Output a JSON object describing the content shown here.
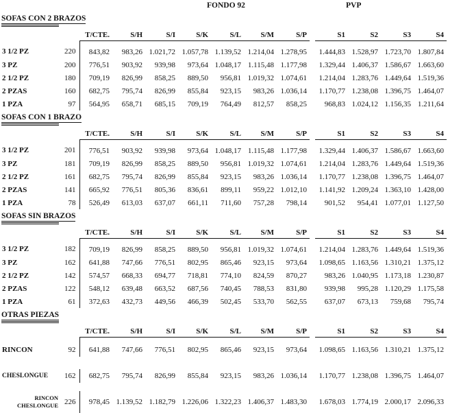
{
  "group_headers": {
    "fondo": "FONDO 92",
    "pvp": "PVP"
  },
  "columns": [
    "T/CTE.",
    "S/H",
    "S/I",
    "S/K",
    "S/L",
    "S/M",
    "S/P",
    "S1",
    "S2",
    "S3",
    "S4"
  ],
  "sections": [
    {
      "title": "SOFAS CON 2 BRAZOS",
      "spaced": false,
      "rows": [
        {
          "label_lines": [
            "3 1/2 PZ"
          ],
          "size": "220",
          "values": [
            "843,82",
            "983,26",
            "1.021,72",
            "1.057,78",
            "1.139,52",
            "1.214,04",
            "1.278,95",
            "1.444,83",
            "1.528,97",
            "1.723,70",
            "1.807,84"
          ]
        },
        {
          "label_lines": [
            "3 PZ"
          ],
          "size": "200",
          "values": [
            "776,51",
            "903,92",
            "939,98",
            "973,64",
            "1.048,17",
            "1.115,48",
            "1.177,98",
            "1.329,44",
            "1.406,37",
            "1.586,67",
            "1.663,60"
          ]
        },
        {
          "label_lines": [
            "2 1/2 PZ"
          ],
          "size": "180",
          "values": [
            "709,19",
            "826,99",
            "858,25",
            "889,50",
            "956,81",
            "1.019,32",
            "1.074,61",
            "1.214,04",
            "1.283,76",
            "1.449,64",
            "1.519,36"
          ]
        },
        {
          "label_lines": [
            "2 PZAS"
          ],
          "size": "160",
          "values": [
            "682,75",
            "795,74",
            "826,99",
            "855,84",
            "923,15",
            "983,26",
            "1.036,14",
            "1.170,77",
            "1.238,08",
            "1.396,75",
            "1.464,07"
          ]
        },
        {
          "label_lines": [
            "1 PZA"
          ],
          "size": "97",
          "values": [
            "564,95",
            "658,71",
            "685,15",
            "709,19",
            "764,49",
            "812,57",
            "858,25",
            "968,83",
            "1.024,12",
            "1.156,35",
            "1.211,64"
          ]
        }
      ]
    },
    {
      "title": "SOFAS CON 1 BRAZO",
      "spaced": false,
      "rows": [
        {
          "label_lines": [
            "3 1/2 PZ"
          ],
          "size": "201",
          "values": [
            "776,51",
            "903,92",
            "939,98",
            "973,64",
            "1.048,17",
            "1.115,48",
            "1.177,98",
            "1.329,44",
            "1.406,37",
            "1.586,67",
            "1.663,60"
          ]
        },
        {
          "label_lines": [
            "3 PZ"
          ],
          "size": "181",
          "values": [
            "709,19",
            "826,99",
            "858,25",
            "889,50",
            "956,81",
            "1.019,32",
            "1.074,61",
            "1.214,04",
            "1.283,76",
            "1.449,64",
            "1.519,36"
          ]
        },
        {
          "label_lines": [
            "2 1/2 PZ"
          ],
          "size": "161",
          "values": [
            "682,75",
            "795,74",
            "826,99",
            "855,84",
            "923,15",
            "983,26",
            "1.036,14",
            "1.170,77",
            "1.238,08",
            "1.396,75",
            "1.464,07"
          ]
        },
        {
          "label_lines": [
            "2 PZAS"
          ],
          "size": "141",
          "values": [
            "665,92",
            "776,51",
            "805,36",
            "836,61",
            "899,11",
            "959,22",
            "1.012,10",
            "1.141,92",
            "1.209,24",
            "1.363,10",
            "1.428,00"
          ]
        },
        {
          "label_lines": [
            "1 PZA"
          ],
          "size": "78",
          "values": [
            "526,49",
            "613,03",
            "637,07",
            "661,11",
            "711,60",
            "757,28",
            "798,14",
            "901,52",
            "954,41",
            "1.077,01",
            "1.127,50"
          ]
        }
      ]
    },
    {
      "title": "SOFAS SIN BRAZOS",
      "spaced": false,
      "rows": [
        {
          "label_lines": [
            "3 1/2 PZ"
          ],
          "size": "182",
          "values": [
            "709,19",
            "826,99",
            "858,25",
            "889,50",
            "956,81",
            "1.019,32",
            "1.074,61",
            "1.214,04",
            "1.283,76",
            "1.449,64",
            "1.519,36"
          ]
        },
        {
          "label_lines": [
            "3 PZ"
          ],
          "size": "162",
          "values": [
            "641,88",
            "747,66",
            "776,51",
            "802,95",
            "865,46",
            "923,15",
            "973,64",
            "1.098,65",
            "1.163,56",
            "1.310,21",
            "1.375,12"
          ]
        },
        {
          "label_lines": [
            "2 1/2 PZ"
          ],
          "size": "142",
          "values": [
            "574,57",
            "668,33",
            "694,77",
            "718,81",
            "774,10",
            "824,59",
            "870,27",
            "983,26",
            "1.040,95",
            "1.173,18",
            "1.230,87"
          ]
        },
        {
          "label_lines": [
            "2 PZAS"
          ],
          "size": "122",
          "values": [
            "548,12",
            "639,48",
            "663,52",
            "687,56",
            "740,45",
            "788,53",
            "831,80",
            "939,98",
            "995,28",
            "1.120,29",
            "1.175,58"
          ]
        },
        {
          "label_lines": [
            "1 PZA"
          ],
          "size": "61",
          "values": [
            "372,63",
            "432,73",
            "449,56",
            "466,39",
            "502,45",
            "533,70",
            "562,55",
            "637,07",
            "673,13",
            "759,68",
            "795,74"
          ]
        }
      ]
    },
    {
      "title": "OTRAS PIEZAS",
      "spaced": true,
      "rows": [
        {
          "label_lines": [
            "RINCON"
          ],
          "size": "92",
          "values": [
            "641,88",
            "747,66",
            "776,51",
            "802,95",
            "865,46",
            "923,15",
            "973,64",
            "1.098,65",
            "1.163,56",
            "1.310,21",
            "1.375,12"
          ]
        },
        {
          "label_lines": [
            "CHESLONGUE"
          ],
          "size": "162",
          "values": [
            "682,75",
            "795,74",
            "826,99",
            "855,84",
            "923,15",
            "983,26",
            "1.036,14",
            "1.170,77",
            "1.238,08",
            "1.396,75",
            "1.464,07"
          ]
        },
        {
          "label_lines": [
            "RINCON",
            "CHESLONGUE"
          ],
          "size": "226",
          "values": [
            "978,45",
            "1.139,52",
            "1.182,79",
            "1.226,06",
            "1.322,23",
            "1.406,37",
            "1.483,30",
            "1.678,03",
            "1.774,19",
            "2.000,17",
            "2.096,33"
          ]
        }
      ]
    }
  ]
}
